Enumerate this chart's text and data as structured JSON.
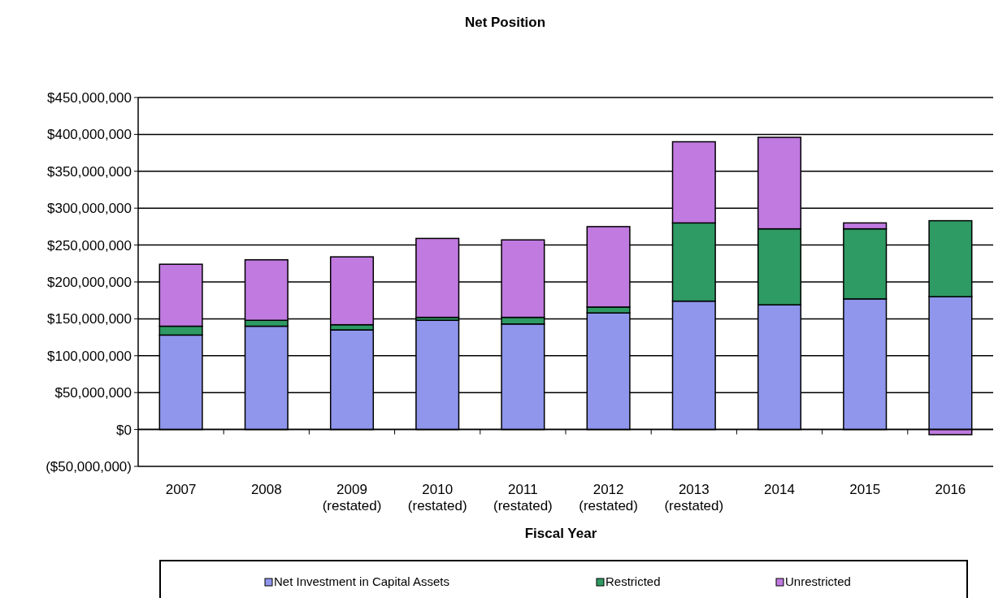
{
  "chart_data": {
    "type": "bar",
    "title": "Net Position",
    "xlabel": "Fiscal Year",
    "stacked": true,
    "grid": "y",
    "legend": "bottom",
    "categories": [
      "2007",
      "2008",
      "2009 (restated)",
      "2010 (restated)",
      "2011 (restated)",
      "2012 (restated)",
      "2013 (restated)",
      "2014",
      "2015",
      "2016"
    ],
    "series": [
      {
        "name": "Net Investment in Capital Assets",
        "color": "#8f96ec",
        "values": [
          128000000,
          140000000,
          135000000,
          148000000,
          143000000,
          158000000,
          174000000,
          169000000,
          177000000,
          180000000
        ]
      },
      {
        "name": "Restricted",
        "color": "#2e9a64",
        "values": [
          12000000,
          8000000,
          7000000,
          4000000,
          9000000,
          8000000,
          106000000,
          103000000,
          95000000,
          103000000
        ]
      },
      {
        "name": "Unrestricted",
        "color": "#c07ae0",
        "values": [
          84000000,
          82000000,
          92000000,
          107000000,
          105000000,
          109000000,
          110000000,
          124000000,
          8000000,
          -7000000
        ]
      }
    ],
    "ylim": [
      -50000000,
      450000000
    ],
    "yticks": [
      {
        "value": -50000000,
        "label": "($50,000,000)"
      },
      {
        "value": 0,
        "label": "$0"
      },
      {
        "value": 50000000,
        "label": "$50,000,000"
      },
      {
        "value": 100000000,
        "label": "$100,000,000"
      },
      {
        "value": 150000000,
        "label": "$150,000,000"
      },
      {
        "value": 200000000,
        "label": "$200,000,000"
      },
      {
        "value": 250000000,
        "label": "$250,000,000"
      },
      {
        "value": 300000000,
        "label": "$300,000,000"
      },
      {
        "value": 350000000,
        "label": "$350,000,000"
      },
      {
        "value": 400000000,
        "label": "$400,000,000"
      },
      {
        "value": 450000000,
        "label": "$450,000,000"
      }
    ]
  }
}
